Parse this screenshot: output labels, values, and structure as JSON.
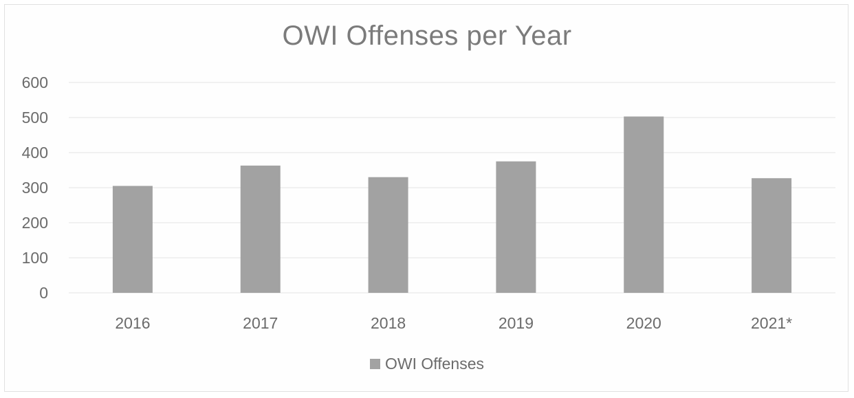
{
  "chart_data": {
    "type": "bar",
    "title": "OWI Offenses per Year",
    "categories": [
      "2016",
      "2017",
      "2018",
      "2019",
      "2020",
      "2021*"
    ],
    "series": [
      {
        "name": "OWI Offenses",
        "values": [
          305,
          363,
          330,
          375,
          503,
          327
        ]
      }
    ],
    "yticks": [
      "0",
      "100",
      "200",
      "300",
      "400",
      "500",
      "600"
    ],
    "ylim": [
      0,
      600
    ],
    "grid": true,
    "legend_position": "bottom",
    "colors": {
      "bar": "#a2a2a2",
      "grid": "#e4e4e4",
      "text": "#6b6b6b",
      "title": "#7b7b7b"
    }
  }
}
